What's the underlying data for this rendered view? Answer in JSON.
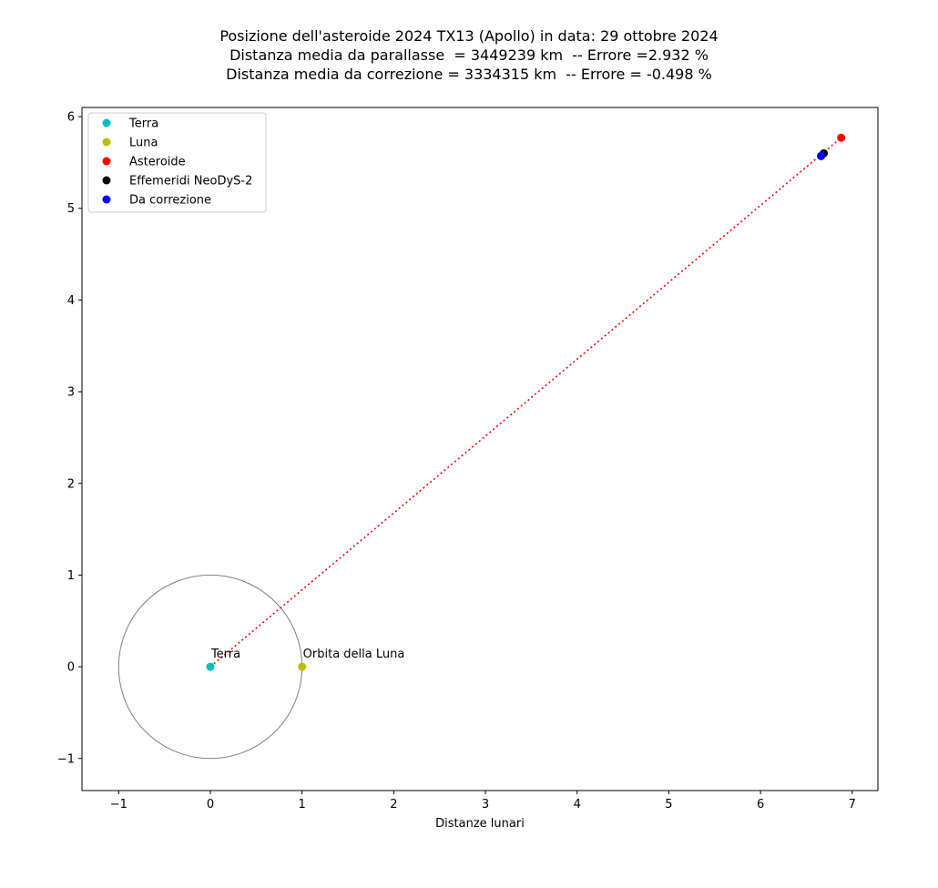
{
  "chart_data": {
    "type": "scatter",
    "title_lines": [
      "Posizione dell'asteroide 2024 TX13 (Apollo) in data: 29 ottobre 2024",
      "Distanza media da parallasse  = 3449239 km  -- Errore =2.932 %",
      "Distanza media da correzione = 3334315 km  -- Errore = -0.498 %"
    ],
    "xlabel": "Distanze lunari",
    "ylabel": "",
    "xlim": [
      -1.4,
      7.28
    ],
    "ylim": [
      -1.35,
      6.1
    ],
    "xticks": [
      -1,
      0,
      1,
      2,
      3,
      4,
      5,
      6,
      7
    ],
    "yticks": [
      -1,
      0,
      1,
      2,
      3,
      4,
      5,
      6
    ],
    "xtick_labels": [
      "−1",
      "0",
      "1",
      "2",
      "3",
      "4",
      "5",
      "6",
      "7"
    ],
    "ytick_labels": [
      "−1",
      "0",
      "1",
      "2",
      "3",
      "4",
      "5",
      "6"
    ],
    "grid": false,
    "legend_position": "top-left",
    "series": [
      {
        "name": "Terra",
        "color": "#00bfbf",
        "points": [
          [
            0,
            0
          ]
        ]
      },
      {
        "name": "Luna",
        "color": "#bfbf00",
        "points": [
          [
            1,
            0
          ]
        ]
      },
      {
        "name": "Asteroide",
        "color": "#ff0000",
        "points": [
          [
            6.88,
            5.77
          ]
        ]
      },
      {
        "name": "Effemeridi NeoDyS-2",
        "color": "#000000",
        "points": [
          [
            6.69,
            5.6
          ]
        ]
      },
      {
        "name": "Da correzione",
        "color": "#0000ff",
        "points": [
          [
            6.66,
            5.57
          ]
        ]
      }
    ],
    "lines": [
      {
        "kind": "dotted",
        "color": "#ff0000",
        "from": [
          0,
          0
        ],
        "to": [
          6.88,
          5.77
        ]
      }
    ],
    "circles": [
      {
        "center": [
          0,
          0
        ],
        "radius": 1,
        "color": "#808080"
      }
    ],
    "annotations": [
      {
        "text": "Terra",
        "at": [
          0,
          0
        ]
      },
      {
        "text": "Orbita della Luna",
        "at": [
          1,
          0
        ]
      }
    ]
  }
}
